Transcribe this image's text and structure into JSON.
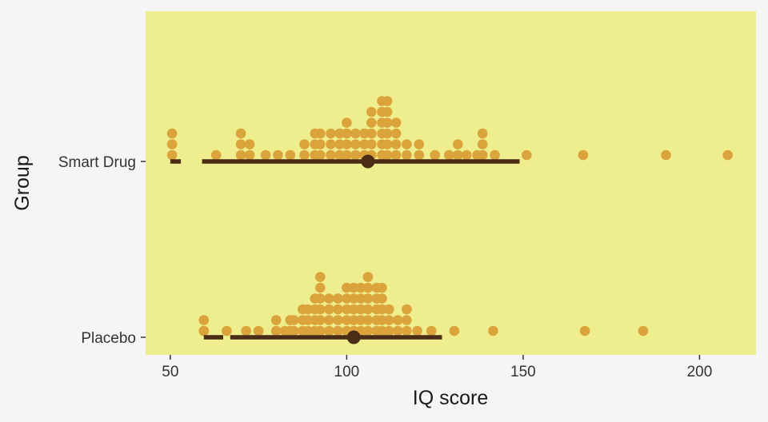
{
  "chart_data": {
    "type": "scatter",
    "subtype": "dotplot-with-interval",
    "xlabel": "IQ score",
    "ylabel": "Group",
    "xlim": [
      43,
      216
    ],
    "x_ticks": [
      50,
      100,
      150,
      200
    ],
    "x_tick_labels": [
      "50",
      "100",
      "150",
      "200"
    ],
    "grid": false,
    "legend": "none",
    "colors": {
      "page_background": "#f5f5f5",
      "panel_background": "#eeee8e",
      "dot": "#dba33b",
      "interval": "#4a2c17",
      "text": "#333333"
    },
    "categories": [
      "Placebo",
      "Smart Drug"
    ],
    "groups": [
      {
        "name": "Smart Drug",
        "dot_stacks": [
          {
            "x": 50.5,
            "count": 3
          },
          {
            "x": 63,
            "count": 1
          },
          {
            "x": 70,
            "count": 3
          },
          {
            "x": 72.5,
            "count": 2
          },
          {
            "x": 70,
            "count": 0
          },
          {
            "x": 77,
            "count": 1
          },
          {
            "x": 80.5,
            "count": 1
          },
          {
            "x": 84,
            "count": 1
          },
          {
            "x": 88,
            "count": 2
          },
          {
            "x": 91,
            "count": 3
          },
          {
            "x": 92.5,
            "count": 3
          },
          {
            "x": 95.5,
            "count": 3
          },
          {
            "x": 98,
            "count": 3
          },
          {
            "x": 100,
            "count": 4
          },
          {
            "x": 102.5,
            "count": 3
          },
          {
            "x": 105,
            "count": 3
          },
          {
            "x": 107,
            "count": 5
          },
          {
            "x": 110,
            "count": 6
          },
          {
            "x": 111.5,
            "count": 6
          },
          {
            "x": 114,
            "count": 4
          },
          {
            "x": 117,
            "count": 2
          },
          {
            "x": 120.5,
            "count": 2
          },
          {
            "x": 125,
            "count": 1
          },
          {
            "x": 129,
            "count": 1
          },
          {
            "x": 131.5,
            "count": 2
          },
          {
            "x": 134,
            "count": 1
          },
          {
            "x": 137,
            "count": 1
          },
          {
            "x": 138.5,
            "count": 3
          },
          {
            "x": 142,
            "count": 1
          },
          {
            "x": 151,
            "count": 1
          },
          {
            "x": 167,
            "count": 1
          },
          {
            "x": 190.5,
            "count": 1
          },
          {
            "x": 208,
            "count": 1
          }
        ],
        "point_estimate": 106,
        "interval": [
          51,
          149
        ],
        "interval_segments": [
          [
            50,
            53
          ],
          [
            59,
            149
          ]
        ]
      },
      {
        "name": "Placebo",
        "dot_stacks": [
          {
            "x": 59.5,
            "count": 2
          },
          {
            "x": 59.5,
            "count": 1
          },
          {
            "x": 66,
            "count": 1
          },
          {
            "x": 71.5,
            "count": 1
          },
          {
            "x": 75,
            "count": 1
          },
          {
            "x": 80,
            "count": 2
          },
          {
            "x": 82.5,
            "count": 1
          },
          {
            "x": 84,
            "count": 2
          },
          {
            "x": 85,
            "count": 2
          },
          {
            "x": 87.5,
            "count": 3
          },
          {
            "x": 89,
            "count": 3
          },
          {
            "x": 91,
            "count": 4
          },
          {
            "x": 92.5,
            "count": 6
          },
          {
            "x": 95,
            "count": 4
          },
          {
            "x": 97.5,
            "count": 4
          },
          {
            "x": 100,
            "count": 5
          },
          {
            "x": 102,
            "count": 5
          },
          {
            "x": 104,
            "count": 5
          },
          {
            "x": 106,
            "count": 6
          },
          {
            "x": 108.5,
            "count": 5
          },
          {
            "x": 110,
            "count": 5
          },
          {
            "x": 112,
            "count": 3
          },
          {
            "x": 114.5,
            "count": 2
          },
          {
            "x": 117,
            "count": 3
          },
          {
            "x": 120,
            "count": 1
          },
          {
            "x": 124,
            "count": 1
          },
          {
            "x": 130.5,
            "count": 1
          },
          {
            "x": 141.5,
            "count": 1
          },
          {
            "x": 167.5,
            "count": 1
          },
          {
            "x": 184,
            "count": 1
          }
        ],
        "point_estimate": 102,
        "interval": [
          59,
          127
        ],
        "interval_segments": [
          [
            59.5,
            65
          ],
          [
            67,
            127
          ]
        ]
      }
    ]
  }
}
